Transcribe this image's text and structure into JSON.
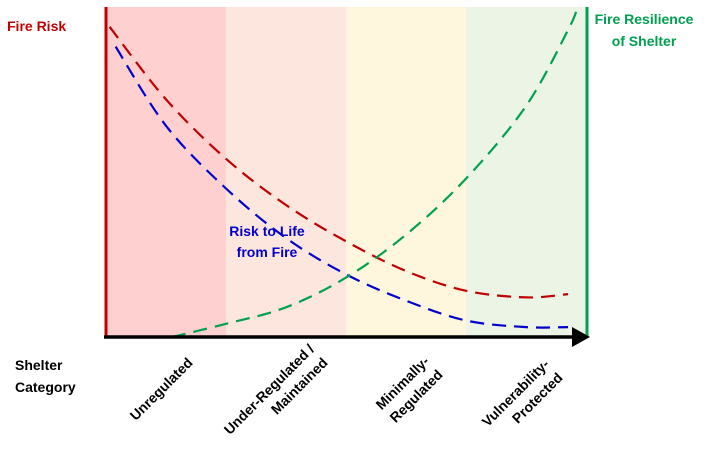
{
  "chart_data": {
    "type": "line",
    "left_axis_label": "Fire Risk",
    "right_axis_label_lines": [
      "Fire Resilience",
      "of Shelter"
    ],
    "x_axis_label_lines": [
      "Shelter",
      "Category"
    ],
    "categories": [
      {
        "label_lines": [
          "Unregulated"
        ],
        "band_color": "#ffd0d0"
      },
      {
        "label_lines": [
          "Under-Regulated /",
          "Maintained"
        ],
        "band_color": "#fce6de"
      },
      {
        "label_lines": [
          "Minimally-",
          "Regulated"
        ],
        "band_color": "#fff6de"
      },
      {
        "label_lines": [
          "Vulnerability-",
          "Protected"
        ],
        "band_color": "#ecf4e6"
      }
    ],
    "series": [
      {
        "name": "Fire Risk",
        "color": "#c00000",
        "axis": "left",
        "points": [
          [
            0.03,
            0.94
          ],
          [
            0.5,
            0.72
          ],
          [
            1.0,
            0.54
          ],
          [
            1.5,
            0.4
          ],
          [
            2.0,
            0.29
          ],
          [
            2.5,
            0.2
          ],
          [
            3.0,
            0.14
          ],
          [
            3.5,
            0.12
          ],
          [
            3.85,
            0.13
          ]
        ]
      },
      {
        "name": "Risk to Life from Fire",
        "label_lines": [
          "Risk to Life",
          "from Fire"
        ],
        "color": "#0000cc",
        "axis": "left",
        "points": [
          [
            0.08,
            0.88
          ],
          [
            0.5,
            0.64
          ],
          [
            1.0,
            0.45
          ],
          [
            1.5,
            0.3
          ],
          [
            2.0,
            0.19
          ],
          [
            2.5,
            0.11
          ],
          [
            3.0,
            0.05
          ],
          [
            3.5,
            0.03
          ],
          [
            3.85,
            0.03
          ]
        ]
      },
      {
        "name": "Fire Resilience of Shelter",
        "color": "#00a050",
        "axis": "right",
        "points": [
          [
            0.55,
            0.0
          ],
          [
            1.0,
            0.04
          ],
          [
            1.5,
            0.09
          ],
          [
            2.0,
            0.18
          ],
          [
            2.5,
            0.31
          ],
          [
            3.0,
            0.48
          ],
          [
            3.5,
            0.7
          ],
          [
            3.85,
            0.93
          ],
          [
            3.93,
            1.0
          ]
        ]
      }
    ],
    "colors": {
      "left_axis": "#c00000",
      "right_axis": "#00a050",
      "x_axis": "#000000"
    }
  }
}
